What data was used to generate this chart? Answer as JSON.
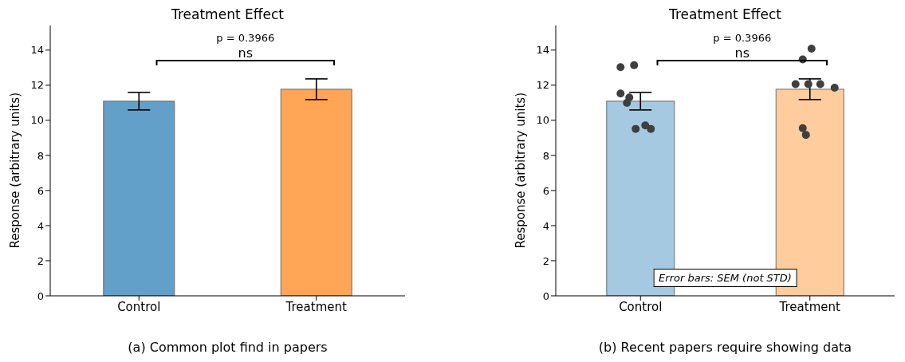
{
  "chart_data": [
    {
      "type": "bar",
      "title": "Treatment Effect",
      "ylabel": "Response (arbitrary units)",
      "categories": [
        "Control",
        "Treatment"
      ],
      "values": [
        11.09,
        11.77
      ],
      "colors": [
        "#62a0ca",
        "#ffa556"
      ],
      "errors": [
        0.5,
        0.59
      ],
      "ylim": [
        0,
        15.4
      ],
      "yticks": [
        0,
        2,
        4,
        6,
        8,
        10,
        12,
        14
      ],
      "annotations": [
        "p = 0.3966",
        "ns",
        "(a) Common plot find in papers"
      ]
    },
    {
      "type": "bar",
      "title": "Treatment Effect",
      "ylabel": "Response (arbitrary units)",
      "categories": [
        "Control",
        "Treatment"
      ],
      "ylim": [
        0,
        15.4
      ],
      "yticks": [
        0,
        2,
        4,
        6,
        8,
        10,
        12,
        14
      ],
      "series": [
        {
          "type": "bar",
          "values": [
            11.09,
            11.77
          ],
          "colors": [
            "#a5c9e1",
            "#ffcc9e"
          ],
          "errors": [
            0.5,
            0.59
          ]
        },
        {
          "type": "scatter",
          "color": "#3f3f3f",
          "x": [
            "Control",
            "Control",
            "Control",
            "Control",
            "Control",
            "Control",
            "Control",
            "Control",
            "Treatment",
            "Treatment",
            "Treatment",
            "Treatment",
            "Treatment",
            "Treatment",
            "Treatment",
            "Treatment"
          ],
          "values": [
            13.03,
            13.14,
            11.53,
            11.3,
            10.99,
            9.71,
            9.51,
            9.51,
            14.08,
            13.47,
            12.06,
            12.06,
            12.06,
            11.86,
            9.55,
            9.17
          ]
        }
      ],
      "annotations": [
        "p = 0.3966",
        "ns",
        "(b) Recent papers require showing data",
        "Error bars: SEM (not STD)"
      ]
    }
  ]
}
